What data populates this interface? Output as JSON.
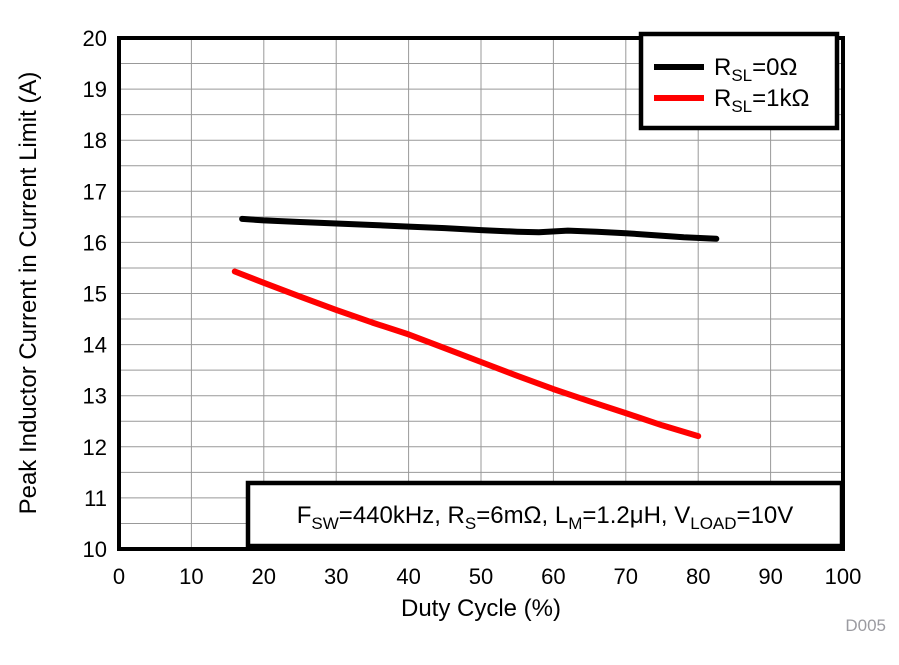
{
  "figure": {
    "watermark": "D005",
    "background": "#ffffff"
  },
  "chart_data": {
    "type": "line",
    "title": "",
    "xlabel": "Duty Cycle (%)",
    "ylabel": "Peak Inductor Current in Current Limit (A)",
    "xlim": [
      0,
      100
    ],
    "ylim": [
      10,
      20
    ],
    "x_ticks": [
      0,
      10,
      20,
      30,
      40,
      50,
      60,
      70,
      80,
      90,
      100
    ],
    "y_ticks": [
      10,
      11,
      12,
      13,
      14,
      15,
      16,
      17,
      18,
      19,
      20
    ],
    "x_grid_step": 10,
    "y_grid_step": 0.5,
    "grid": true,
    "legend_position": "top-right",
    "series": [
      {
        "name": "RSL=0Ω",
        "label_parts": [
          {
            "t": "R"
          },
          {
            "s": "SL"
          },
          {
            "t": "=0Ω"
          }
        ],
        "color": "#000000",
        "x": [
          17,
          20,
          25,
          30,
          35,
          40,
          45,
          50,
          55,
          58,
          62,
          66,
          70,
          74,
          78,
          82.5
        ],
        "y": [
          16.46,
          16.43,
          16.4,
          16.37,
          16.34,
          16.31,
          16.28,
          16.24,
          16.21,
          16.2,
          16.23,
          16.21,
          16.18,
          16.14,
          16.1,
          16.07
        ]
      },
      {
        "name": "RSL=1kΩ",
        "label_parts": [
          {
            "t": "R"
          },
          {
            "s": "SL"
          },
          {
            "t": "=1kΩ"
          }
        ],
        "color": "#ff0000",
        "x": [
          16,
          20,
          25,
          30,
          35,
          40,
          45,
          50,
          55,
          60,
          65,
          70,
          75,
          80
        ],
        "y": [
          15.43,
          15.21,
          14.94,
          14.68,
          14.43,
          14.2,
          13.93,
          13.66,
          13.39,
          13.13,
          12.89,
          12.66,
          12.42,
          12.21
        ]
      }
    ],
    "annotation": {
      "text": "FSW=440kHz, RS=6mΩ, LM=1.2μH, VLOAD=10V",
      "parts": [
        {
          "t": "F"
        },
        {
          "s": "SW"
        },
        {
          "t": "=440kHz, R"
        },
        {
          "s": "S"
        },
        {
          "t": "=6mΩ, L"
        },
        {
          "s": "M"
        },
        {
          "t": "=1.2μH, V"
        },
        {
          "s": "LOAD"
        },
        {
          "t": "=10V"
        }
      ]
    },
    "colors": {
      "grid": "#999999",
      "axis": "#000000",
      "series_black": "#000000",
      "series_red": "#ff0000",
      "watermark": "#9b9ba1"
    }
  }
}
